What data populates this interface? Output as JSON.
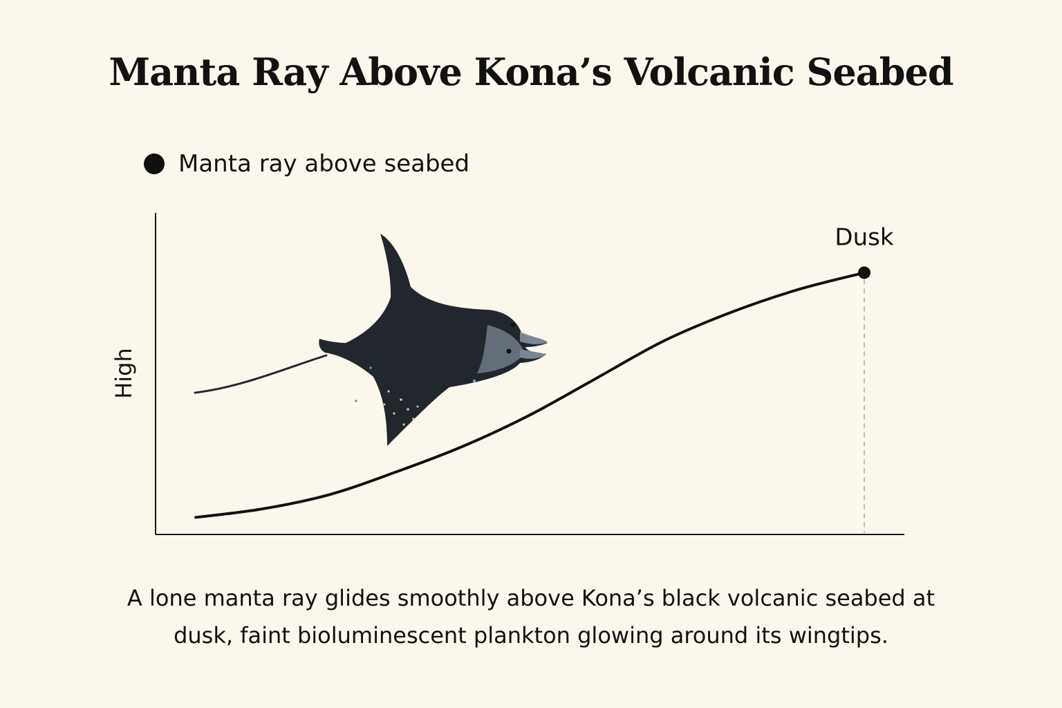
{
  "chart_data": {
    "type": "line",
    "title": "Manta Ray Above Kona’s Volcanic Seabed",
    "ylabel": "High",
    "xlabel": "",
    "series": [
      {
        "name": "Manta ray above seabed",
        "x": [
          0,
          1,
          2,
          3,
          4,
          5,
          6,
          7,
          8,
          9,
          10
        ],
        "values": [
          0.06,
          0.09,
          0.14,
          0.22,
          0.31,
          0.42,
          0.55,
          0.68,
          0.78,
          0.86,
          0.92
        ]
      }
    ],
    "annotations": [
      {
        "label": "Dusk",
        "x": 10,
        "y": 0.92
      }
    ],
    "xlim": [
      -0.6,
      10.6
    ],
    "ylim": [
      0,
      1.13
    ],
    "grid": false,
    "legend": "top-left"
  },
  "caption": "A lone manta ray glides smoothly above Kona’s black volcanic seabed at dusk, faint bioluminescent plankton glowing around its wingtips.",
  "colors": {
    "background": "#fcf7ec",
    "ink": "#111111",
    "manta_top": "#22272e",
    "manta_belly": "#7b8792",
    "dashed_line": "#bbbbbb"
  }
}
